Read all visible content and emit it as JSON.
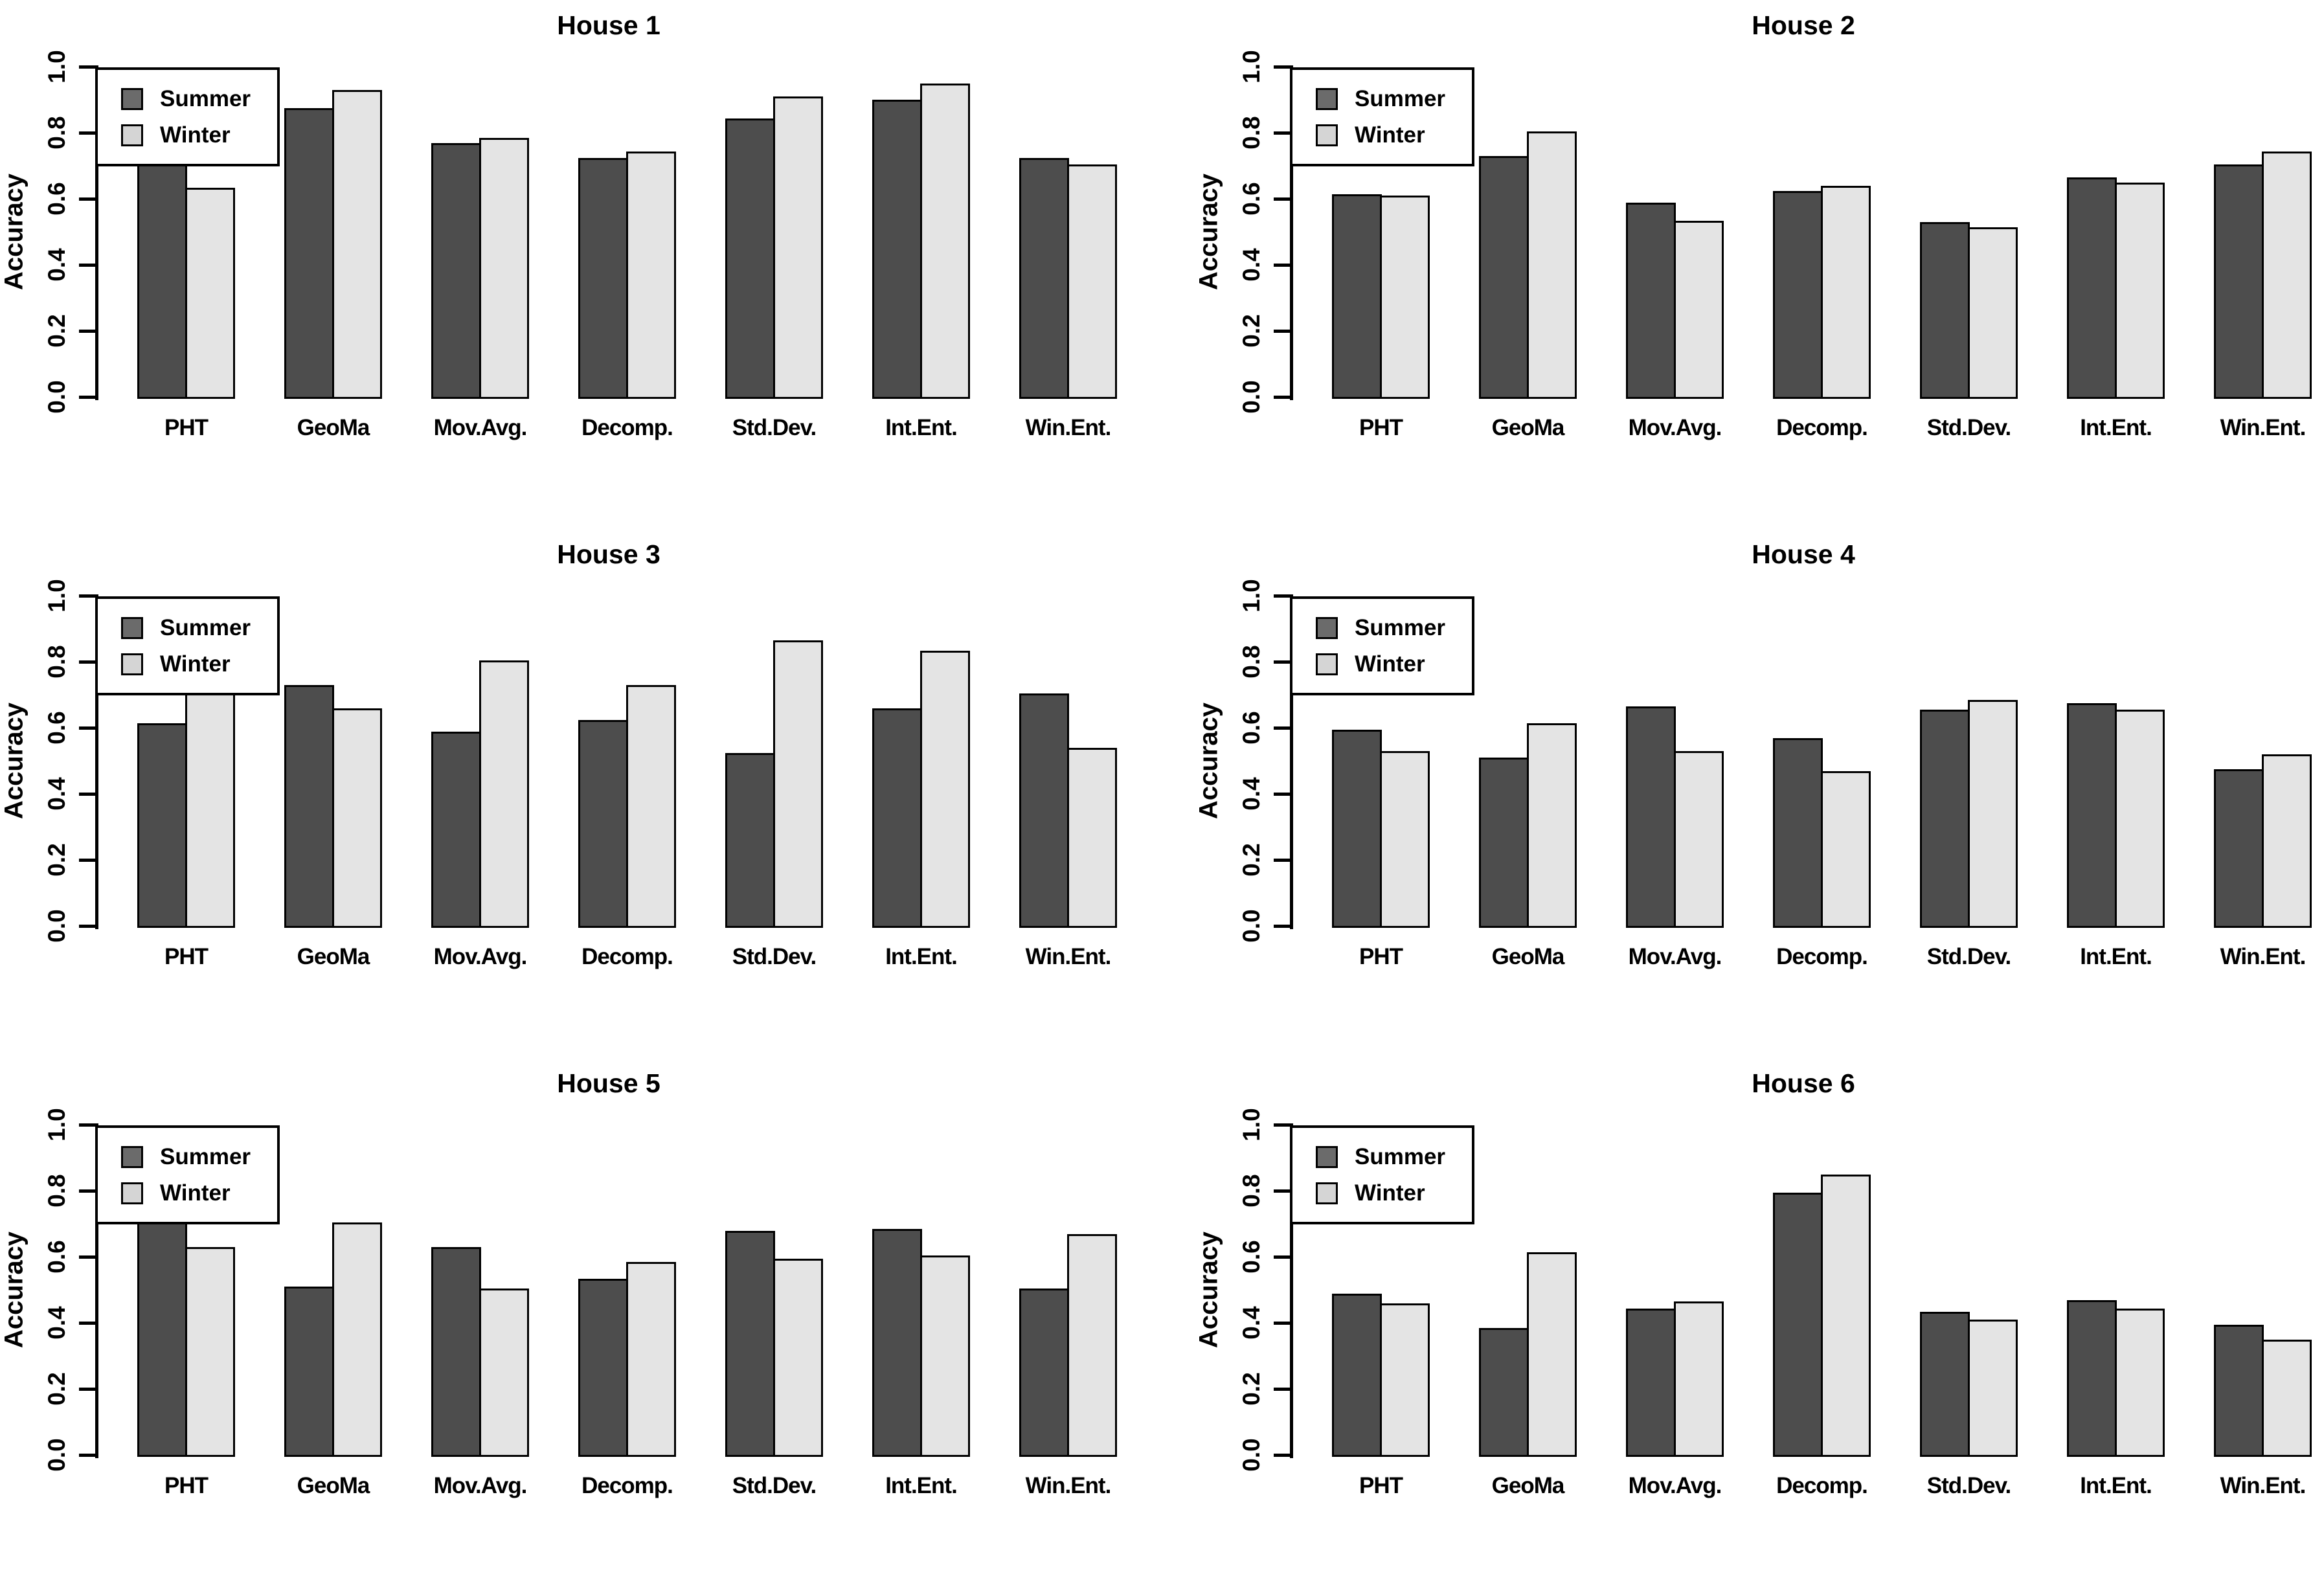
{
  "figure": {
    "background": "#ffffff",
    "rows": 3,
    "cols": 2
  },
  "colors": {
    "summer_bar": "#4d4d4d",
    "winter_bar": "#e4e4e4",
    "legend_summer_swatch": "#6b6b6b",
    "legend_winter_swatch": "#d5d5d5",
    "bar_border": "#000000",
    "axis": "#000000",
    "text": "#000000"
  },
  "chart_data": [
    {
      "type": "bar",
      "title": "House 1",
      "ylabel": "Accuracy",
      "ylim": [
        0,
        1
      ],
      "yticks": [
        "0.0",
        "0.2",
        "0.4",
        "0.6",
        "0.8",
        "1.0"
      ],
      "grid": false,
      "legend_position": "top-left",
      "legend": [
        "Summer",
        "Winter"
      ],
      "categories": [
        "PHT",
        "GeoMa",
        "Mov.Avg.",
        "Decomp.",
        "Std.Dev.",
        "Int.Ent.",
        "Win.Ent."
      ],
      "series": [
        {
          "name": "Summer",
          "values": [
            0.71,
            0.88,
            0.775,
            0.73,
            0.85,
            0.905,
            0.73
          ]
        },
        {
          "name": "Winter",
          "values": [
            0.64,
            0.935,
            0.79,
            0.75,
            0.915,
            0.955,
            0.71
          ]
        }
      ]
    },
    {
      "type": "bar",
      "title": "House 2",
      "ylabel": "Accuracy",
      "ylim": [
        0,
        1
      ],
      "yticks": [
        "0.0",
        "0.2",
        "0.4",
        "0.6",
        "0.8",
        "1.0"
      ],
      "grid": false,
      "legend_position": "top-left",
      "legend": [
        "Summer",
        "Winter"
      ],
      "categories": [
        "PHT",
        "GeoMa",
        "Mov.Avg.",
        "Decomp.",
        "Std.Dev.",
        "Int.Ent.",
        "Win.Ent."
      ],
      "series": [
        {
          "name": "Summer",
          "values": [
            0.62,
            0.735,
            0.595,
            0.63,
            0.535,
            0.67,
            0.71
          ]
        },
        {
          "name": "Winter",
          "values": [
            0.615,
            0.81,
            0.54,
            0.645,
            0.52,
            0.655,
            0.75
          ]
        }
      ]
    },
    {
      "type": "bar",
      "title": "House 3",
      "ylabel": "Accuracy",
      "ylim": [
        0,
        1
      ],
      "yticks": [
        "0.0",
        "0.2",
        "0.4",
        "0.6",
        "0.8",
        "1.0"
      ],
      "grid": false,
      "legend_position": "top-left",
      "legend": [
        "Summer",
        "Winter"
      ],
      "categories": [
        "PHT",
        "GeoMa",
        "Mov.Avg.",
        "Decomp.",
        "Std.Dev.",
        "Int.Ent.",
        "Win.Ent."
      ],
      "series": [
        {
          "name": "Summer",
          "values": [
            0.62,
            0.735,
            0.595,
            0.63,
            0.53,
            0.665,
            0.71
          ]
        },
        {
          "name": "Winter",
          "values": [
            0.71,
            0.665,
            0.81,
            0.735,
            0.87,
            0.84,
            0.545
          ]
        }
      ]
    },
    {
      "type": "bar",
      "title": "House 4",
      "ylabel": "Accuracy",
      "ylim": [
        0,
        1
      ],
      "yticks": [
        "0.0",
        "0.2",
        "0.4",
        "0.6",
        "0.8",
        "1.0"
      ],
      "grid": false,
      "legend_position": "top-left",
      "legend": [
        "Summer",
        "Winter"
      ],
      "categories": [
        "PHT",
        "GeoMa",
        "Mov.Avg.",
        "Decomp.",
        "Std.Dev.",
        "Int.Ent.",
        "Win.Ent."
      ],
      "series": [
        {
          "name": "Summer",
          "values": [
            0.6,
            0.515,
            0.67,
            0.575,
            0.66,
            0.68,
            0.48
          ]
        },
        {
          "name": "Winter",
          "values": [
            0.535,
            0.62,
            0.535,
            0.475,
            0.69,
            0.66,
            0.525
          ]
        }
      ]
    },
    {
      "type": "bar",
      "title": "House 5",
      "ylabel": "Accuracy",
      "ylim": [
        0,
        1
      ],
      "yticks": [
        "0.0",
        "0.2",
        "0.4",
        "0.6",
        "0.8",
        "1.0"
      ],
      "grid": false,
      "legend_position": "top-left",
      "legend": [
        "Summer",
        "Winter"
      ],
      "categories": [
        "PHT",
        "GeoMa",
        "Mov.Avg.",
        "Decomp.",
        "Std.Dev.",
        "Int.Ent.",
        "Win.Ent."
      ],
      "series": [
        {
          "name": "Summer",
          "values": [
            0.71,
            0.515,
            0.635,
            0.54,
            0.685,
            0.69,
            0.51
          ]
        },
        {
          "name": "Winter",
          "values": [
            0.635,
            0.71,
            0.51,
            0.59,
            0.6,
            0.61,
            0.675
          ]
        }
      ]
    },
    {
      "type": "bar",
      "title": "House 6",
      "ylabel": "Accuracy",
      "ylim": [
        0,
        1
      ],
      "yticks": [
        "0.0",
        "0.2",
        "0.4",
        "0.6",
        "0.8",
        "1.0"
      ],
      "grid": false,
      "legend_position": "top-left",
      "legend": [
        "Summer",
        "Winter"
      ],
      "categories": [
        "PHT",
        "GeoMa",
        "Mov.Avg.",
        "Decomp.",
        "Std.Dev.",
        "Int.Ent.",
        "Win.Ent."
      ],
      "series": [
        {
          "name": "Summer",
          "values": [
            0.495,
            0.39,
            0.45,
            0.8,
            0.44,
            0.475,
            0.4
          ]
        },
        {
          "name": "Winter",
          "values": [
            0.465,
            0.62,
            0.47,
            0.855,
            0.415,
            0.45,
            0.355
          ]
        }
      ]
    }
  ]
}
